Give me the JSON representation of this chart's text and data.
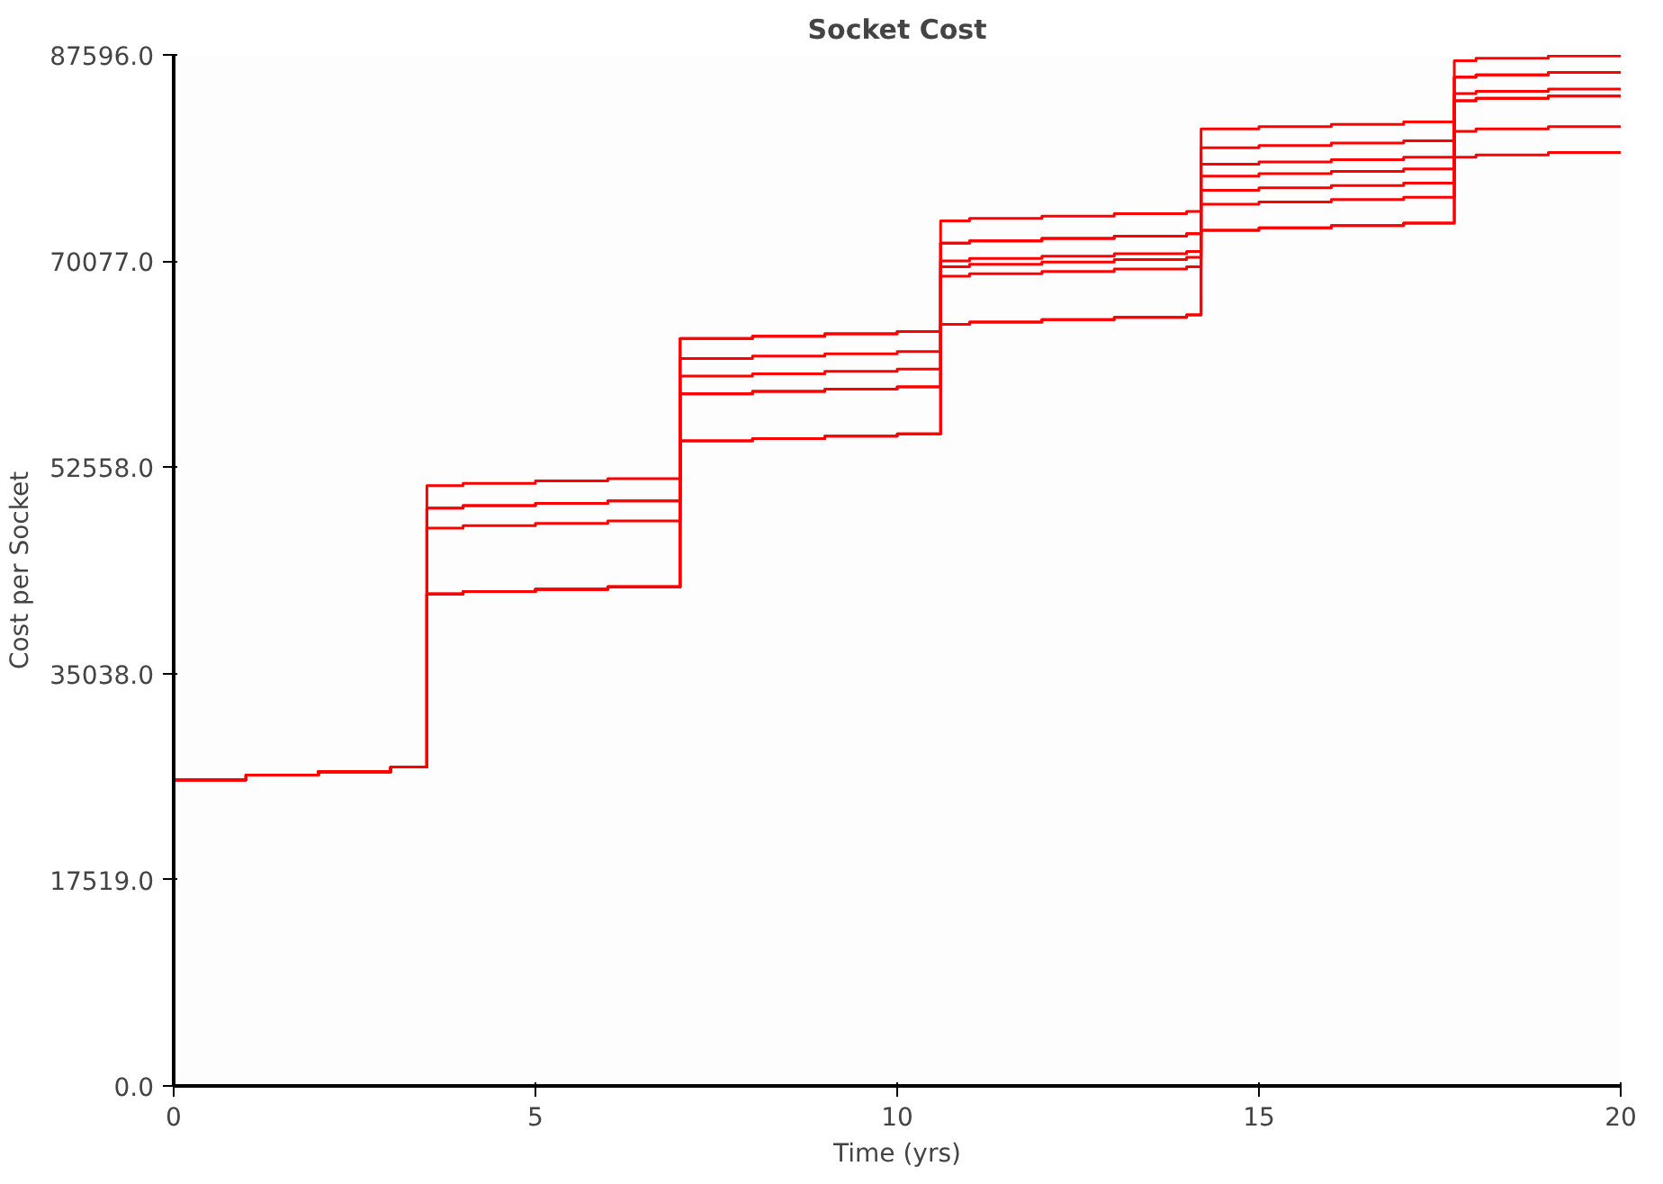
{
  "chart_data": {
    "type": "step",
    "title": "Socket Cost",
    "xlabel": "Time (yrs)",
    "ylabel": "Cost per Socket",
    "xlim": [
      0,
      20
    ],
    "xticks": [
      0,
      5,
      10,
      15,
      20
    ],
    "ylim": [
      0,
      87596
    ],
    "yticks": [
      {
        "value": 0,
        "label": "0.0"
      },
      {
        "value": 17519,
        "label": "17519.0"
      },
      {
        "value": 35038,
        "label": "35038.0"
      },
      {
        "value": 52558,
        "label": "52558.0"
      },
      {
        "value": 70077,
        "label": "70077.0"
      },
      {
        "value": 87596,
        "label": "87596.0"
      }
    ],
    "grid": false,
    "line_style": "solid",
    "marker": "none",
    "x": [
      0,
      1,
      2,
      3,
      3.5,
      4,
      5,
      6,
      7,
      8,
      9,
      10,
      10.6,
      11,
      12,
      13,
      14,
      14.2,
      15,
      16,
      17,
      17.7,
      18,
      19,
      20
    ],
    "series": [
      {
        "color": "#ff0000",
        "values": [
          26000,
          26400,
          26700,
          27100,
          41800,
          42000,
          42200,
          42400,
          54800,
          55000,
          55200,
          55400,
          64700,
          64900,
          65100,
          65300,
          65500,
          72700,
          72900,
          73100,
          73300,
          78900,
          79100,
          79300,
          79300
        ]
      },
      {
        "color": "#ff0000",
        "values": [
          26000,
          26400,
          26700,
          27100,
          41800,
          42000,
          42200,
          42400,
          54800,
          55000,
          55200,
          55400,
          64700,
          64900,
          65100,
          65300,
          65500,
          72700,
          72900,
          73100,
          73300,
          81100,
          81300,
          81500,
          81500
        ]
      },
      {
        "color": "#ff0000",
        "values": [
          26000,
          26400,
          26700,
          27100,
          41800,
          42000,
          42200,
          42400,
          58800,
          59000,
          59200,
          59400,
          68800,
          69000,
          69200,
          69400,
          69600,
          74900,
          75100,
          75300,
          75500,
          83700,
          83900,
          84100,
          84100
        ]
      },
      {
        "color": "#ff0000",
        "values": [
          26000,
          26400,
          26700,
          27100,
          47400,
          47600,
          47800,
          48000,
          60300,
          60500,
          60700,
          60900,
          69600,
          69800,
          70000,
          70200,
          70400,
          76100,
          76300,
          76500,
          76700,
          84300,
          84500,
          84700,
          84700
        ]
      },
      {
        "color": "#ff0000",
        "values": [
          26000,
          26400,
          26700,
          27100,
          49100,
          49300,
          49500,
          49700,
          61800,
          62000,
          62200,
          62400,
          70100,
          70300,
          70500,
          70700,
          70900,
          77300,
          77500,
          77700,
          77900,
          85700,
          85900,
          86100,
          86100
        ]
      },
      {
        "color": "#ff0000",
        "values": [
          26000,
          26400,
          26700,
          27100,
          51000,
          51200,
          51400,
          51600,
          63500,
          63700,
          63900,
          64100,
          71600,
          71800,
          72000,
          72200,
          72400,
          78300,
          78500,
          78700,
          78900,
          83700,
          83900,
          84100,
          84100
        ]
      },
      {
        "color": "#ff0000",
        "values": [
          26000,
          26400,
          26700,
          27100,
          41800,
          42000,
          42200,
          42400,
          58800,
          59000,
          59200,
          59400,
          73500,
          73700,
          73900,
          74100,
          74300,
          79700,
          79900,
          80100,
          80300,
          85700,
          85900,
          86100,
          86100
        ]
      },
      {
        "color": "#ff0000",
        "values": [
          26000,
          26400,
          26700,
          27100,
          49100,
          49300,
          49500,
          49700,
          63500,
          63700,
          63900,
          64100,
          71600,
          71800,
          72000,
          72200,
          72400,
          81300,
          81500,
          81700,
          81900,
          87100,
          87300,
          87500,
          87500
        ]
      }
    ]
  }
}
